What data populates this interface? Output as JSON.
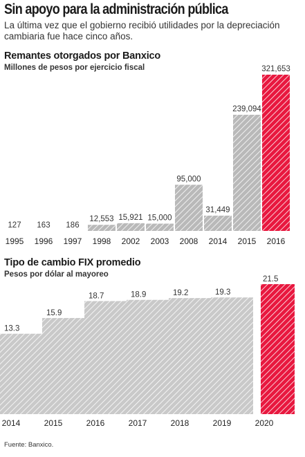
{
  "header": {
    "title": "Sin apoyo para la administración pública",
    "subtitle": "La última vez que el gobierno recibió utilidades por la depreciación cambiaria fue hace cinco años."
  },
  "source": "Fuente: Banxico.",
  "colors": {
    "bar": "#b9b9b9",
    "highlight": "#e8183f",
    "hatch": "#ffffff"
  },
  "chart_data": [
    {
      "type": "bar",
      "title": "Remantes otorgados por Banxico",
      "subtitle": "Millones de pesos por ejercicio fiscal",
      "categories": [
        "1995",
        "1996",
        "1997",
        "1998",
        "2002",
        "2003",
        "2008",
        "2014",
        "2015",
        "2016"
      ],
      "values": [
        127,
        163,
        186,
        12553,
        15921,
        15000,
        95000,
        31449,
        239094,
        321653
      ],
      "value_labels": [
        "127",
        "163",
        "186",
        "12,553",
        "15,921",
        "15,000",
        "95,000",
        "31,449",
        "239,094",
        "321,653"
      ],
      "highlight_index": 9,
      "ylim": [
        0,
        321653
      ]
    },
    {
      "type": "area",
      "title": "Tipo de cambio FIX promedio",
      "subtitle": "Pesos por dólar al mayoreo",
      "categories": [
        "2014",
        "2015",
        "2016",
        "2017",
        "2018",
        "2019",
        "2020"
      ],
      "values": [
        13.3,
        15.9,
        18.7,
        18.9,
        19.2,
        19.3,
        21.5
      ],
      "value_labels": [
        "13.3",
        "15.9",
        "18.7",
        "18.9",
        "19.2",
        "19.3",
        "21.5"
      ],
      "highlight_index": 6,
      "ylim": [
        0,
        21.5
      ]
    }
  ]
}
